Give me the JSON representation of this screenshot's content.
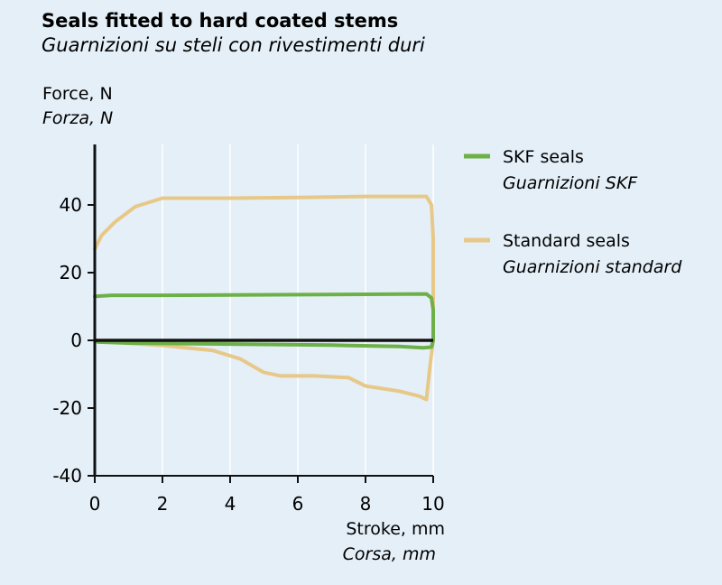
{
  "chart_data": {
    "type": "line",
    "title": "Seals fitted to hard coated stems",
    "subtitle": "Guarnizioni su steli con rivestimenti duri",
    "ylabel": "Force, N",
    "ylabel_it": "Forza, N",
    "xlabel": "Stroke, mm",
    "xlabel_it": "Corsa, mm",
    "xlim": [
      0,
      10
    ],
    "ylim": [
      -40,
      55
    ],
    "x_ticks": [
      0,
      2,
      4,
      6,
      8,
      10
    ],
    "y_ticks": [
      40,
      20,
      0,
      -20,
      -40
    ],
    "grid": "vertical",
    "legend_position": "right",
    "series": [
      {
        "name": "SKF seals",
        "name_it": "Guarnizioni SKF",
        "color": "#6db047",
        "upper": [
          [
            0,
            13
          ],
          [
            0.5,
            13.3
          ],
          [
            2,
            13.3
          ],
          [
            4,
            13.4
          ],
          [
            6,
            13.5
          ],
          [
            8,
            13.6
          ],
          [
            9.8,
            13.7
          ],
          [
            9.95,
            12.5
          ],
          [
            10,
            9
          ],
          [
            10,
            0
          ]
        ],
        "lower": [
          [
            0,
            0
          ],
          [
            0.1,
            -0.5
          ],
          [
            1,
            -0.8
          ],
          [
            3,
            -1.0
          ],
          [
            5,
            -1.2
          ],
          [
            7,
            -1.4
          ],
          [
            9,
            -1.8
          ],
          [
            9.7,
            -2.2
          ],
          [
            9.95,
            -2
          ],
          [
            10,
            0
          ]
        ]
      },
      {
        "name": "Standard seals",
        "name_it": "Guarnizioni standard",
        "color": "#e8c888",
        "upper": [
          [
            0,
            27
          ],
          [
            0.2,
            31
          ],
          [
            0.6,
            35
          ],
          [
            1.2,
            39.5
          ],
          [
            2,
            42
          ],
          [
            4,
            42
          ],
          [
            6,
            42.2
          ],
          [
            8,
            42.5
          ],
          [
            9.8,
            42.5
          ],
          [
            9.95,
            40
          ],
          [
            10,
            30
          ],
          [
            10,
            0
          ]
        ],
        "lower": [
          [
            0,
            0
          ],
          [
            0.5,
            -0.5
          ],
          [
            2,
            -1.5
          ],
          [
            3.5,
            -3
          ],
          [
            4.3,
            -5.5
          ],
          [
            5,
            -9.5
          ],
          [
            5.5,
            -10.5
          ],
          [
            6.5,
            -10.5
          ],
          [
            7.5,
            -11
          ],
          [
            8,
            -13.5
          ],
          [
            9,
            -15
          ],
          [
            9.6,
            -16.5
          ],
          [
            9.8,
            -17.5
          ],
          [
            9.9,
            -8
          ],
          [
            10,
            0
          ]
        ]
      }
    ]
  }
}
